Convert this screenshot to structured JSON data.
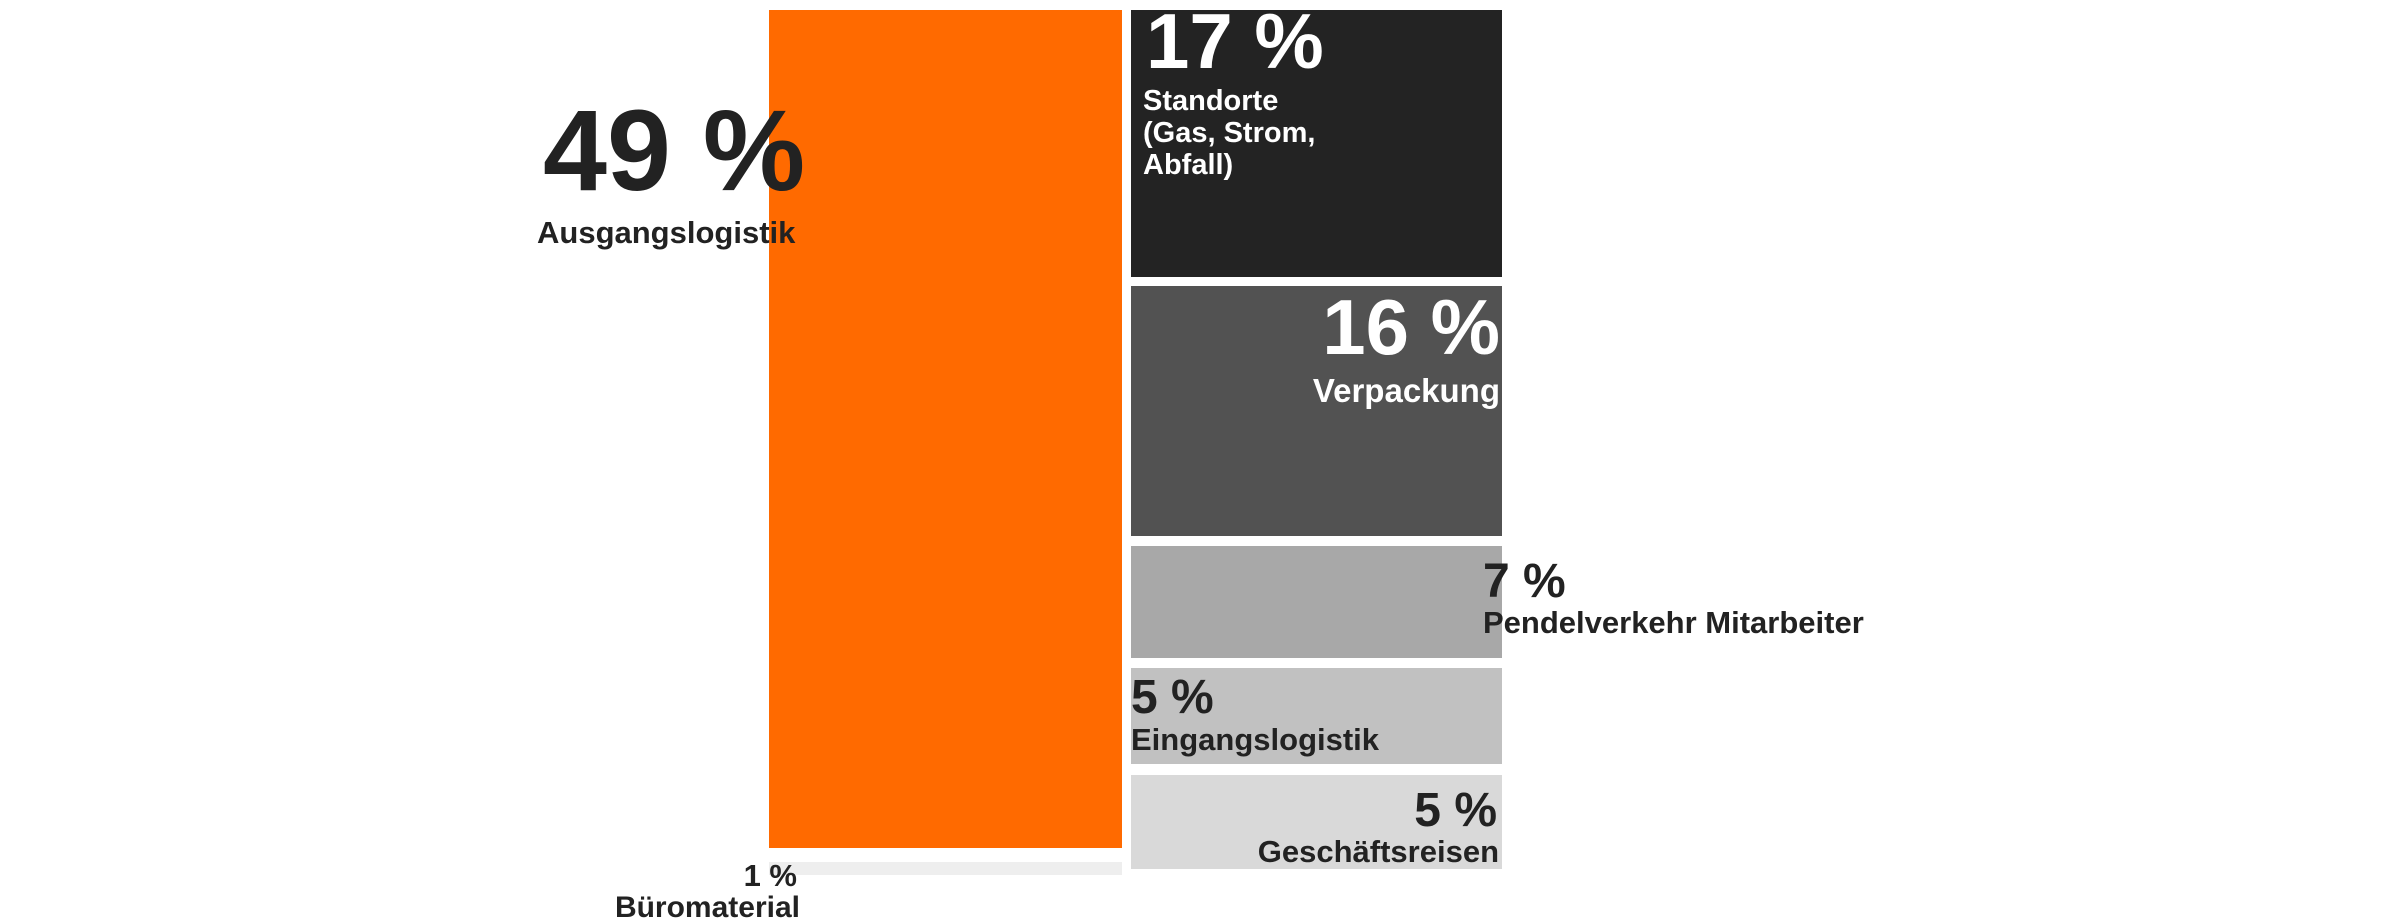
{
  "chart_data": {
    "type": "treemap",
    "unit": "%",
    "segments": [
      {
        "name": "Ausgangslogistik",
        "value": 49,
        "label_pct": "49 %",
        "label_lines": [
          "Ausgangslogistik"
        ],
        "color": "#ff6a00",
        "text_color": "#222222"
      },
      {
        "name": "Standorte (Gas, Strom, Abfall)",
        "value": 17,
        "label_pct": "17 %",
        "label_lines": [
          "Standorte",
          "(Gas, Strom,",
          "Abfall)"
        ],
        "color": "#232323",
        "text_color": "#ffffff"
      },
      {
        "name": "Verpackung",
        "value": 16,
        "label_pct": "16 %",
        "label_lines": [
          "Verpackung"
        ],
        "color": "#525252",
        "text_color": "#ffffff"
      },
      {
        "name": "Pendelverkehr Mitarbeiter",
        "value": 7,
        "label_pct": "7 %",
        "label_lines": [
          "Pendelverkehr Mitarbeiter"
        ],
        "color": "#a8a8a8",
        "text_color": "#222222"
      },
      {
        "name": "Eingangslogistik",
        "value": 5,
        "label_pct": "5 %",
        "label_lines": [
          "Eingangslogistik"
        ],
        "color": "#c1c1c1",
        "text_color": "#222222"
      },
      {
        "name": "Geschäftsreisen",
        "value": 5,
        "label_pct": "5 %",
        "label_lines": [
          "Geschäftsreisen"
        ],
        "color": "#d9d9d9",
        "text_color": "#222222"
      },
      {
        "name": "Büromaterial",
        "value": 1,
        "label_pct": "1 %",
        "label_lines": [
          "Büromaterial"
        ],
        "color": "#eeeeee",
        "text_color": "#222222"
      }
    ]
  }
}
